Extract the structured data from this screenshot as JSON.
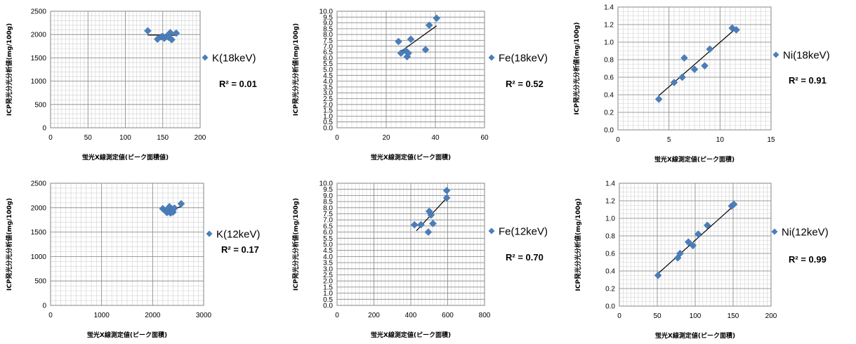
{
  "colors": {
    "marker": "#4a7ebb",
    "grid_major": "#868686",
    "grid_minor": "#d0d0d0",
    "trendline": "#000000"
  },
  "chart_data": [
    {
      "type": "scatter",
      "series": [
        {
          "name": "K(18keV)",
          "x": [
            130,
            143,
            148,
            150,
            152,
            155,
            158,
            160,
            162,
            168
          ],
          "y": [
            2080,
            1900,
            1950,
            1960,
            1920,
            1960,
            1940,
            2040,
            1890,
            2030
          ]
        }
      ],
      "trendline": {
        "x": [
          130,
          168
        ],
        "y": [
          1990,
          1985
        ]
      },
      "r2": "R² = 0.01",
      "xlabel": "蛍光X線測定値(ピーク面積値)",
      "ylabel": "ICP発光分光分析値(mg/100g)",
      "xlim": [
        0,
        200
      ],
      "ylim": [
        0,
        2500
      ],
      "xticks": [
        "0",
        "50",
        "100",
        "150",
        "200"
      ],
      "yticks": [
        "0",
        "500",
        "1000",
        "1500",
        "2000",
        "2500"
      ],
      "grid": true,
      "legend_position": "right"
    },
    {
      "type": "scatter",
      "series": [
        {
          "name": "Fe(18keV)",
          "x": [
            25,
            26,
            28,
            28.5,
            29,
            30,
            36,
            37.5,
            40.5
          ],
          "y": [
            7.4,
            6.4,
            6.6,
            6.1,
            6.4,
            7.6,
            6.7,
            8.8,
            9.4
          ]
        }
      ],
      "trendline": {
        "x": [
          25,
          40.5
        ],
        "y": [
          6.4,
          8.75
        ]
      },
      "r2": "R² = 0.52",
      "xlabel": "蛍光X線測定値(ピーク面積)",
      "ylabel": "ICP発光分光分析値(mg/100g)",
      "xlim": [
        0,
        60
      ],
      "ylim": [
        0,
        10
      ],
      "xticks": [
        "0",
        "20",
        "40",
        "60"
      ],
      "yticks": [
        "0.0",
        "0.5",
        "1.0",
        "1.5",
        "2.0",
        "2.5",
        "3.0",
        "3.5",
        "4.0",
        "4.5",
        "5.0",
        "5.5",
        "6.0",
        "6.5",
        "7.0",
        "7.5",
        "8.0",
        "8.5",
        "9.0",
        "9.5",
        "10.0"
      ],
      "grid": true,
      "legend_position": "right"
    },
    {
      "type": "scatter",
      "series": [
        {
          "name": "Ni(18keV)",
          "x": [
            4,
            5.5,
            6.3,
            6.5,
            7.5,
            8.5,
            9,
            11.2,
            11.6
          ],
          "y": [
            0.35,
            0.54,
            0.6,
            0.82,
            0.69,
            0.73,
            0.92,
            1.16,
            1.14
          ]
        }
      ],
      "trendline": {
        "x": [
          4,
          11.6
        ],
        "y": [
          0.39,
          1.16
        ]
      },
      "r2": "R² = 0.91",
      "xlabel": "蛍光X線測定値(ピーク面積)",
      "ylabel": "ICP発光分光分析値(mg/100g)",
      "xlim": [
        0,
        15
      ],
      "ylim": [
        0,
        1.4
      ],
      "xticks": [
        "0",
        "5",
        "10",
        "15"
      ],
      "yticks": [
        "0.0",
        "0.2",
        "0.4",
        "0.6",
        "0.8",
        "1.0",
        "1.2",
        "1.4"
      ],
      "grid": true,
      "legend_position": "right"
    },
    {
      "type": "scatter",
      "series": [
        {
          "name": "K(12keV)",
          "x": [
            2200,
            2250,
            2280,
            2300,
            2330,
            2350,
            2380,
            2400,
            2430,
            2560
          ],
          "y": [
            1980,
            1940,
            1900,
            1960,
            2020,
            1890,
            1950,
            1910,
            1990,
            2080
          ]
        }
      ],
      "trendline": {
        "x": [
          2200,
          2560
        ],
        "y": [
          1940,
          2020
        ]
      },
      "r2": "R² = 0.17",
      "xlabel": "蛍光X線測定値(ピーク面積)",
      "ylabel": "ICP発光分光分析値(mg/100g)",
      "xlim": [
        0,
        3000
      ],
      "ylim": [
        0,
        2500
      ],
      "xticks": [
        "0",
        "1000",
        "2000",
        "3000"
      ],
      "yticks": [
        "0",
        "500",
        "1000",
        "1500",
        "2000",
        "2500"
      ],
      "grid": true,
      "legend_position": "right"
    },
    {
      "type": "scatter",
      "series": [
        {
          "name": "Fe(12keV)",
          "x": [
            420,
            455,
            495,
            500,
            510,
            520,
            595,
            595
          ],
          "y": [
            6.6,
            6.6,
            6.0,
            7.7,
            7.4,
            6.7,
            9.4,
            8.8
          ]
        }
      ],
      "trendline": {
        "x": [
          430,
          595
        ],
        "y": [
          6.1,
          8.8
        ]
      },
      "r2": "R² = 0.70",
      "xlabel": "蛍光X線測定値(ピーク面積)",
      "ylabel": "ICP発光分光分析値(mg/100g)",
      "xlim": [
        0,
        800
      ],
      "ylim": [
        0,
        10
      ],
      "xticks": [
        "0",
        "200",
        "400",
        "600",
        "800"
      ],
      "yticks": [
        "0.0",
        "0.5",
        "1.0",
        "1.5",
        "2.0",
        "2.5",
        "3.0",
        "3.5",
        "4.0",
        "4.5",
        "5.0",
        "5.5",
        "6.0",
        "6.5",
        "7.0",
        "7.5",
        "8.0",
        "8.5",
        "9.0",
        "9.5",
        "10.0"
      ],
      "grid": true,
      "legend_position": "right"
    },
    {
      "type": "scatter",
      "series": [
        {
          "name": "Ni(12keV)",
          "x": [
            51,
            77,
            80,
            91,
            97,
            104,
            116,
            148,
            151
          ],
          "y": [
            0.35,
            0.55,
            0.6,
            0.73,
            0.69,
            0.82,
            0.92,
            1.14,
            1.16
          ]
        }
      ],
      "trendline": {
        "x": [
          51,
          153
        ],
        "y": [
          0.37,
          1.16
        ]
      },
      "r2": "R² = 0.99",
      "xlabel": "蛍光X線測定値(ピーク面積)",
      "ylabel": "ICP発光分光分析値(mg/100g)",
      "xlim": [
        0,
        200
      ],
      "ylim": [
        0,
        1.4
      ],
      "xticks": [
        "0",
        "50",
        "100",
        "150",
        "200"
      ],
      "yticks": [
        "0.0",
        "0.2",
        "0.4",
        "0.6",
        "0.8",
        "1.0",
        "1.2",
        "1.4"
      ],
      "grid": true,
      "legend_position": "right"
    }
  ]
}
